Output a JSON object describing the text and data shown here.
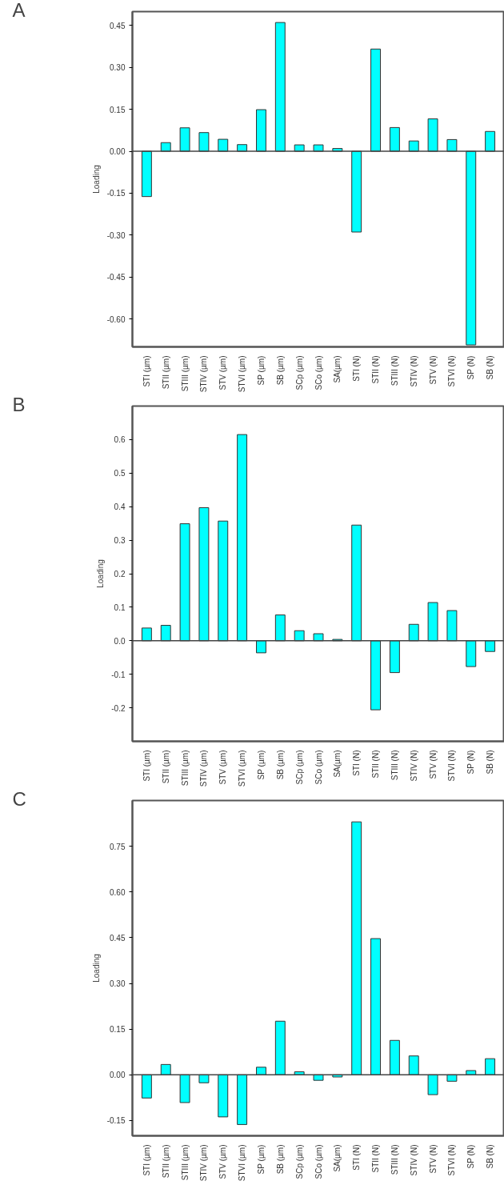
{
  "chart_data": [
    {
      "type": "bar",
      "title": "A",
      "ylabel": "Loading",
      "categories": [
        "STI (µm)",
        "STII (µm)",
        "STIII (µm)",
        "STIV (µm)",
        "STV (µm)",
        "STVI (µm)",
        "SP (µm)",
        "SB (µm)",
        "SCp (µm)",
        "SCo (µm)",
        "SA(µm)",
        "STI (N)",
        "STII (N)",
        "STIII (N)",
        "STIV (N)",
        "STV (N)",
        "STVI (N)",
        "SP (N)",
        "SB (N)"
      ],
      "values": [
        -0.162,
        0.031,
        0.084,
        0.067,
        0.043,
        0.024,
        0.149,
        0.461,
        0.023,
        0.023,
        0.01,
        -0.289,
        0.366,
        0.085,
        0.037,
        0.116,
        0.042,
        -0.693,
        0.071
      ],
      "color": "#00ffff",
      "ylim": [
        -0.7,
        0.5
      ],
      "yticks": [
        {
          "value": -0.6,
          "label": "-0.60"
        },
        {
          "value": -0.45,
          "label": "-0.45"
        },
        {
          "value": -0.3,
          "label": "-0.30"
        },
        {
          "value": -0.15,
          "label": "-0.15"
        },
        {
          "value": 0,
          "label": "0.00"
        },
        {
          "value": 0.15,
          "label": "0.15"
        },
        {
          "value": 0.3,
          "label": "0.30"
        },
        {
          "value": 0.45,
          "label": "0.45"
        }
      ],
      "ref_lines": [
        {
          "axis": "y",
          "value": 0,
          "color": "#444444"
        }
      ],
      "grid": false,
      "legend": false
    },
    {
      "type": "bar",
      "title": "B",
      "ylabel": "Loading",
      "categories": [
        "STI (µm)",
        "STII (µm)",
        "STIII (µm)",
        "STIV (µm)",
        "STV (µm)",
        "STVI (µm)",
        "SP (µm)",
        "SB (µm)",
        "SCp (µm)",
        "SCo (µm)",
        "SA(µm)",
        "STI (N)",
        "STII (N)",
        "STIII (N)",
        "STIV (N)",
        "STV (N)",
        "STVI (N)",
        "SP (N)",
        "SB (N)"
      ],
      "values": [
        0.038,
        0.046,
        0.349,
        0.397,
        0.357,
        0.615,
        -0.036,
        0.077,
        0.03,
        0.021,
        0.004,
        0.345,
        -0.206,
        -0.095,
        0.049,
        0.114,
        0.09,
        -0.077,
        -0.032
      ],
      "color": "#00ffff",
      "ylim": [
        -0.3,
        0.7
      ],
      "yticks": [
        {
          "value": -0.2,
          "label": "-0.2"
        },
        {
          "value": -0.1,
          "label": "-0.1"
        },
        {
          "value": 0,
          "label": "0.0"
        },
        {
          "value": 0.1,
          "label": "0.1"
        },
        {
          "value": 0.2,
          "label": "0.2"
        },
        {
          "value": 0.3,
          "label": "0.3"
        },
        {
          "value": 0.4,
          "label": "0.4"
        },
        {
          "value": 0.5,
          "label": "0.5"
        },
        {
          "value": 0.6,
          "label": "0.6"
        }
      ],
      "ref_lines": [
        {
          "axis": "y",
          "value": 0,
          "color": "#444444"
        }
      ],
      "grid": false,
      "legend": false
    },
    {
      "type": "bar",
      "title": "C",
      "ylabel": "Loading",
      "categories": [
        "STI (µm)",
        "STII (µm)",
        "STIII (µm)",
        "STIV (µm)",
        "STV (µm)",
        "STVI (µm)",
        "SP (µm)",
        "SB (µm)",
        "SCp (µm)",
        "SCo (µm)",
        "SA(µm)",
        "STI (N)",
        "STII (N)",
        "STIII (N)",
        "STIV (N)",
        "STV (N)",
        "STVI (N)",
        "SP (N)",
        "SB (N)"
      ],
      "values": [
        -0.076,
        0.034,
        -0.091,
        -0.026,
        -0.138,
        -0.163,
        0.025,
        0.176,
        0.01,
        -0.018,
        -0.007,
        0.83,
        0.447,
        0.113,
        0.062,
        -0.065,
        -0.021,
        0.014,
        0.053
      ],
      "color": "#00ffff",
      "ylim": [
        -0.2,
        0.9
      ],
      "yticks": [
        {
          "value": -0.15,
          "label": "-0.15"
        },
        {
          "value": 0,
          "label": "0.00"
        },
        {
          "value": 0.15,
          "label": "0.15"
        },
        {
          "value": 0.3,
          "label": "0.30"
        },
        {
          "value": 0.45,
          "label": "0.45"
        },
        {
          "value": 0.6,
          "label": "0.60"
        },
        {
          "value": 0.75,
          "label": "0.75"
        }
      ],
      "ref_lines": [
        {
          "axis": "y",
          "value": 0,
          "color": "#444444"
        }
      ],
      "grid": false,
      "legend": false
    }
  ]
}
